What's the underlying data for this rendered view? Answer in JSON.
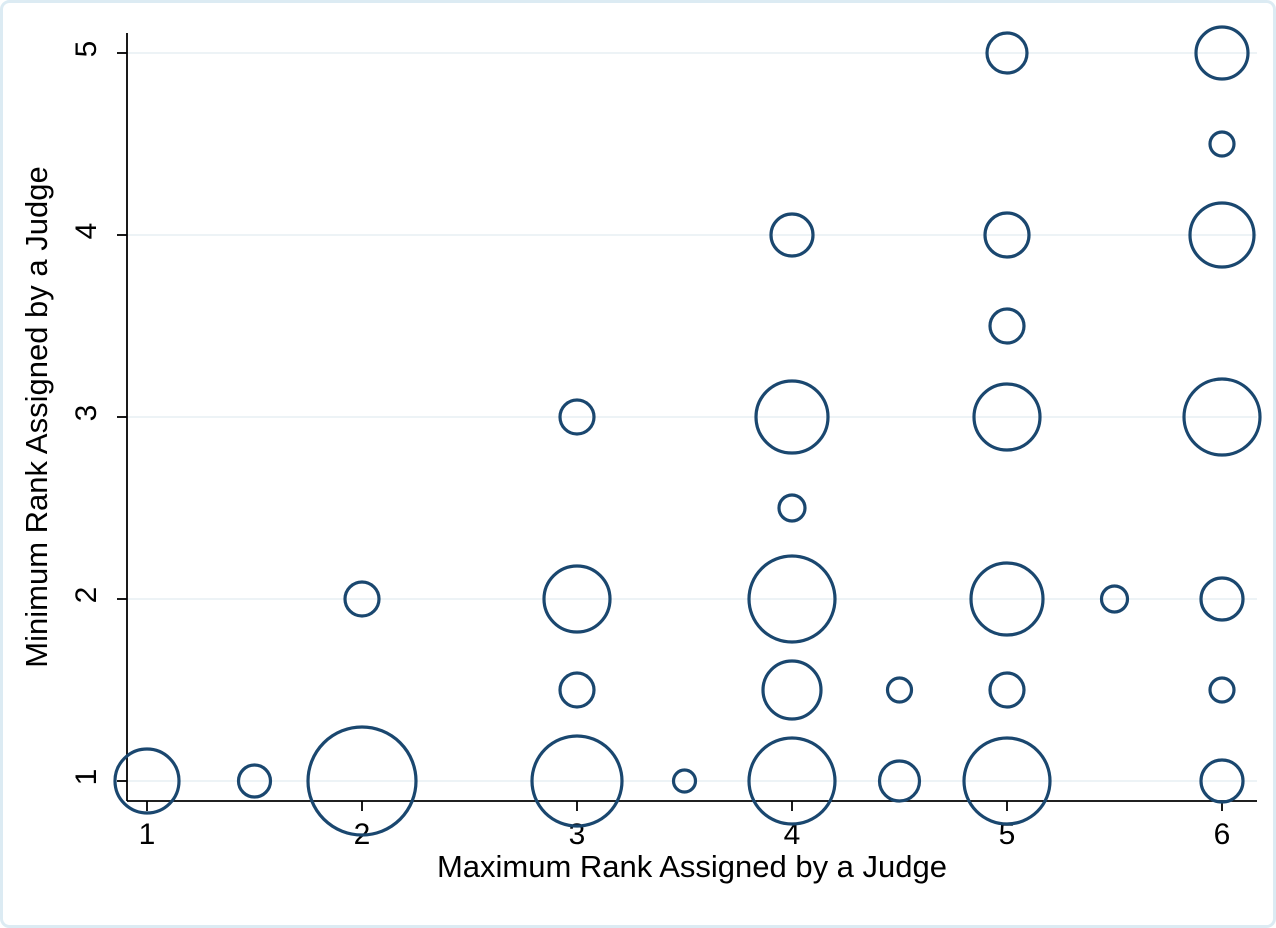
{
  "figure": {
    "background_color": "#ffffff",
    "border_color": "#dcebf3",
    "marker_color": "#1a476f",
    "gridline_color": "#e7eff4"
  },
  "chart_data": {
    "type": "scatter",
    "subtype": "bubble-frequency-plot",
    "title": "",
    "xlabel": "Maximum Rank Assigned by a Judge",
    "ylabel": "Minimum Rank Assigned by a Judge",
    "xlim": [
      0.9,
      6.17
    ],
    "ylim": [
      0.88,
      5.12
    ],
    "x_ticks": [
      1,
      2,
      3,
      4,
      5,
      6
    ],
    "y_ticks": [
      1,
      2,
      3,
      4,
      5
    ],
    "grid": "horizontal-only",
    "legend": "none",
    "marker": "hollow-circle",
    "size_encoding": "bubble area proportional to frequency (no numeric labels shown)",
    "points": [
      {
        "x": 1,
        "y": 1,
        "r": 32
      },
      {
        "x": 1.5,
        "y": 1,
        "r": 16
      },
      {
        "x": 2,
        "y": 1,
        "r": 54
      },
      {
        "x": 3,
        "y": 1,
        "r": 45
      },
      {
        "x": 3.5,
        "y": 1,
        "r": 11
      },
      {
        "x": 4,
        "y": 1,
        "r": 43
      },
      {
        "x": 4.5,
        "y": 1,
        "r": 20
      },
      {
        "x": 5,
        "y": 1,
        "r": 43
      },
      {
        "x": 6,
        "y": 1,
        "r": 21
      },
      {
        "x": 3,
        "y": 1.5,
        "r": 17
      },
      {
        "x": 4,
        "y": 1.5,
        "r": 29
      },
      {
        "x": 4.5,
        "y": 1.5,
        "r": 12
      },
      {
        "x": 5,
        "y": 1.5,
        "r": 17
      },
      {
        "x": 6,
        "y": 1.5,
        "r": 12
      },
      {
        "x": 2,
        "y": 2,
        "r": 17
      },
      {
        "x": 3,
        "y": 2,
        "r": 33
      },
      {
        "x": 4,
        "y": 2,
        "r": 43
      },
      {
        "x": 5,
        "y": 2,
        "r": 36
      },
      {
        "x": 5.5,
        "y": 2,
        "r": 13
      },
      {
        "x": 6,
        "y": 2,
        "r": 21
      },
      {
        "x": 4,
        "y": 2.5,
        "r": 13
      },
      {
        "x": 3,
        "y": 3,
        "r": 17
      },
      {
        "x": 4,
        "y": 3,
        "r": 36
      },
      {
        "x": 5,
        "y": 3,
        "r": 33
      },
      {
        "x": 6,
        "y": 3,
        "r": 38
      },
      {
        "x": 5,
        "y": 3.5,
        "r": 17
      },
      {
        "x": 4,
        "y": 4,
        "r": 21
      },
      {
        "x": 5,
        "y": 4,
        "r": 22
      },
      {
        "x": 6,
        "y": 4,
        "r": 32
      },
      {
        "x": 6,
        "y": 4.5,
        "r": 12
      },
      {
        "x": 5,
        "y": 5,
        "r": 20
      },
      {
        "x": 6,
        "y": 5,
        "r": 26
      }
    ]
  }
}
